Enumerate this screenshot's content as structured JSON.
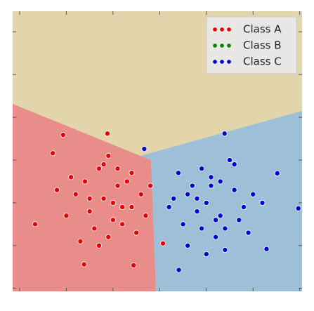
{
  "chart_data": {
    "type": "scatter",
    "series": [
      {
        "name": "Class A",
        "color": "#e00000",
        "x": [
          -2.67,
          -2.29,
          -2.07,
          -1.12,
          -1.62,
          -0.56,
          0.07,
          -1.2,
          -0.9,
          -1.5,
          -1.0,
          -0.6,
          -1.8,
          -1.3,
          -0.8,
          -1.1,
          -1.6,
          -0.4,
          -2.0,
          -1.4,
          -0.7,
          -1.2,
          -0.3,
          -1.9,
          -1.0,
          -0.5,
          -1.5,
          -0.9,
          -2.2,
          -1.3,
          -0.2,
          -1.7,
          -0.8,
          -1.1,
          -0.6
        ],
        "values": [
          -1.5,
          0.16,
          0.59,
          0.62,
          -2.44,
          -2.46,
          -1.95,
          -0.9,
          -0.6,
          -1.2,
          -1.4,
          -0.3,
          -0.8,
          -0.2,
          -1.1,
          -1.8,
          -0.5,
          -0.8,
          -1.3,
          -1.6,
          -0.5,
          -0.1,
          -1.3,
          -0.4,
          -1.0,
          -1.7,
          -0.9,
          -0.2,
          -0.7,
          -2.0,
          -0.6,
          -1.9,
          -1.5,
          0.1,
          -1.1
        ]
      },
      {
        "name": "Class B",
        "color": "#008000",
        "x": [],
        "values": []
      },
      {
        "name": "Class C",
        "color": "#0000d0",
        "x": [
          -0.33,
          1.39,
          2.52,
          2.29,
          0.41,
          2.97,
          1.0,
          0.7,
          1.3,
          0.5,
          1.6,
          0.9,
          1.2,
          0.3,
          1.8,
          1.1,
          0.6,
          1.4,
          2.0,
          0.8,
          1.5,
          0.4,
          1.7,
          1.0,
          2.2,
          0.2,
          1.3,
          0.9,
          1.9,
          0.6,
          1.2,
          1.6,
          0.8,
          1.4,
          1.1
        ],
        "values": [
          0.26,
          0.62,
          -0.31,
          -2.08,
          -2.57,
          -1.13,
          -1.0,
          -0.6,
          -1.3,
          -1.5,
          -0.7,
          -0.2,
          -1.8,
          -0.9,
          -1.1,
          -0.4,
          -2.0,
          -1.6,
          -0.8,
          -1.2,
          0.0,
          -0.3,
          -1.4,
          -2.2,
          -1.0,
          -1.1,
          -0.5,
          -1.6,
          -1.7,
          -0.8,
          -1.4,
          -0.1,
          -0.9,
          -2.1,
          -0.6
        ]
      }
    ],
    "xlim": [
      -3.15,
      3.05
    ],
    "xticks": [
      -3,
      -2,
      -1,
      0,
      1,
      2,
      3
    ],
    "ylim": [
      -3.07,
      3.48
    ],
    "yticks": [
      -3,
      -2,
      -1,
      0,
      1,
      2,
      3
    ],
    "legend": "upper right"
  }
}
